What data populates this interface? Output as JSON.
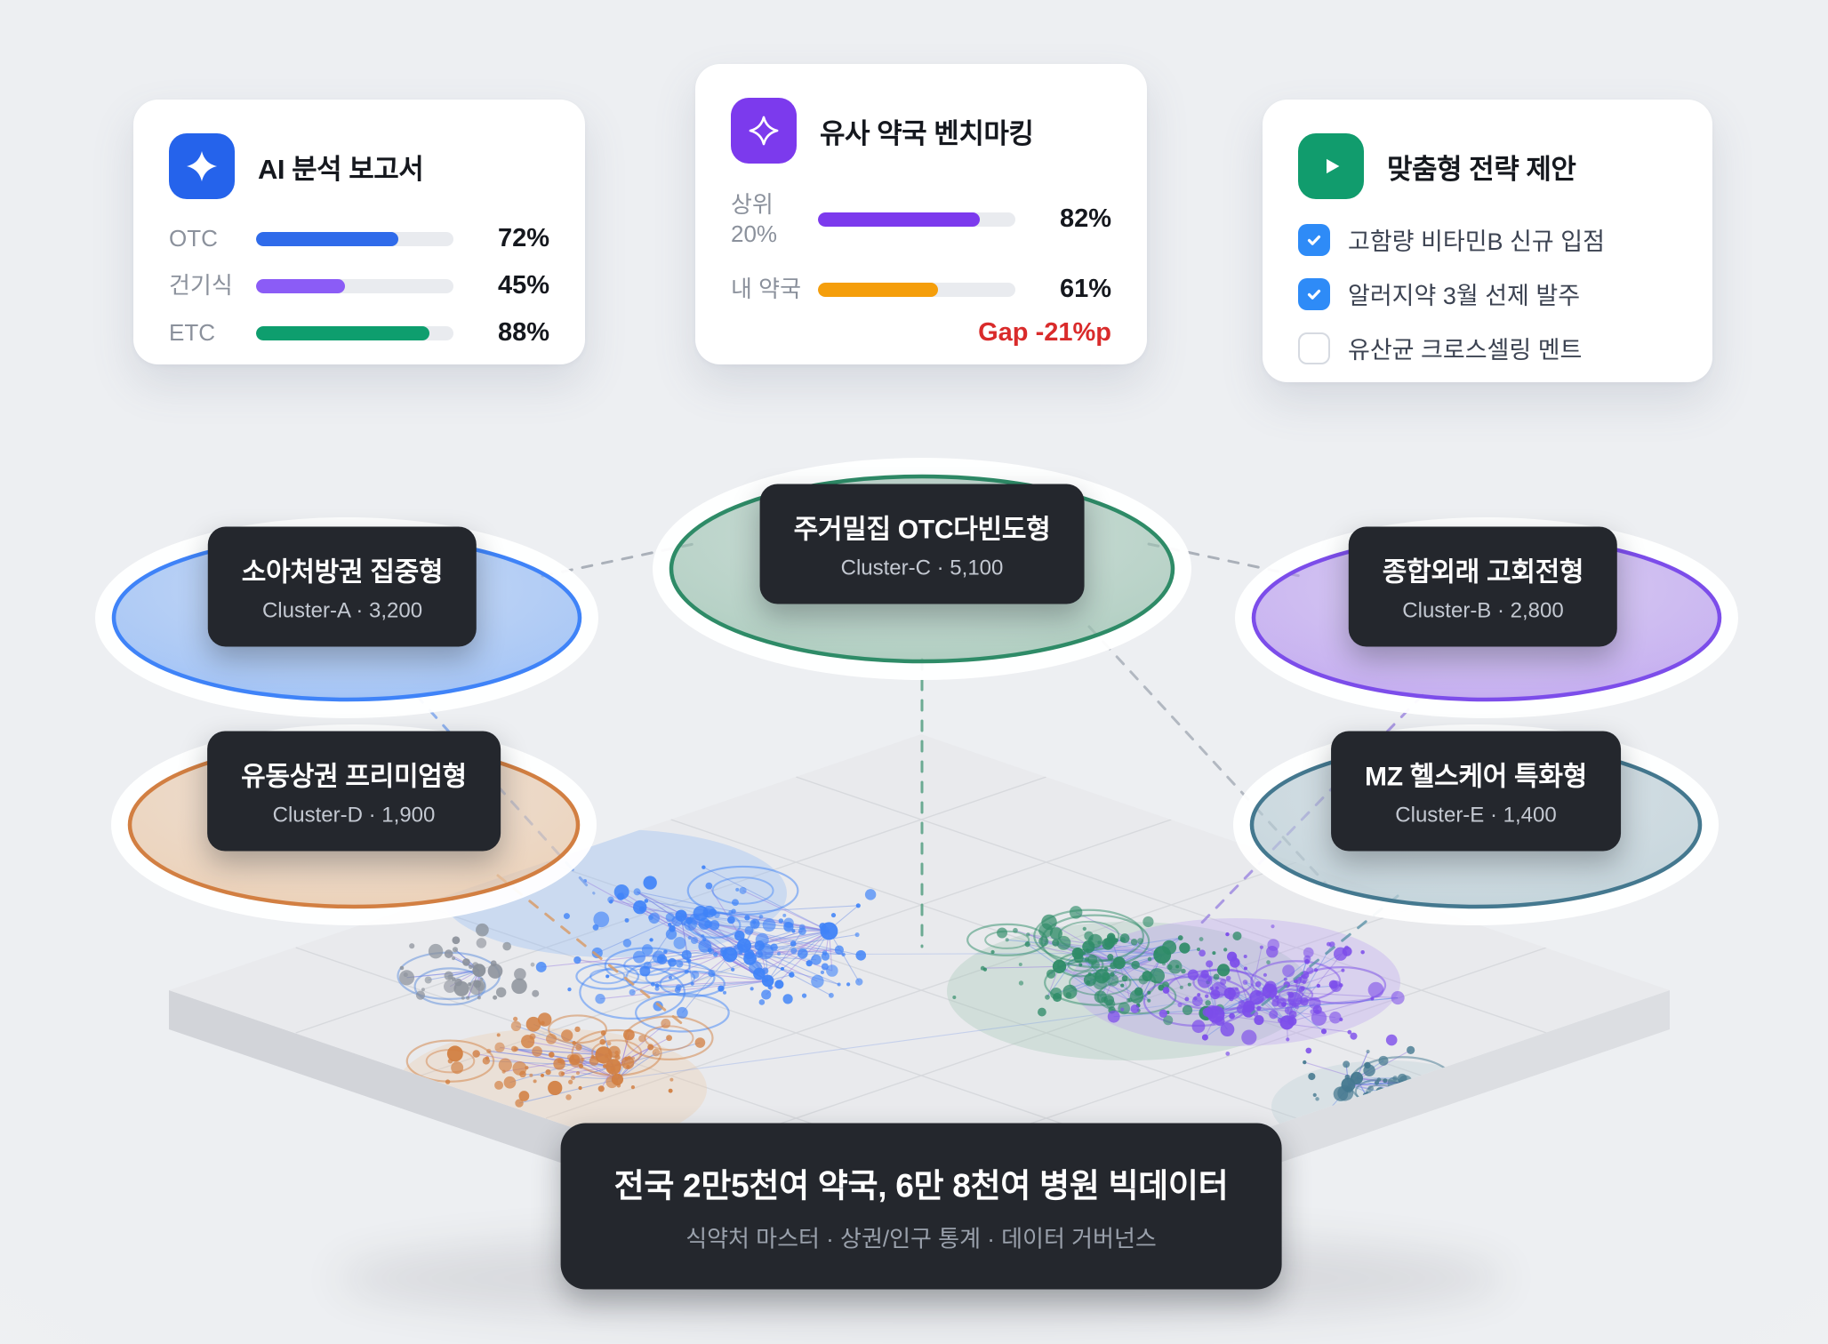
{
  "cards": {
    "ai_report": {
      "icon": "sparkle-icon",
      "icon_bg": "#2563eb",
      "title": "AI 분석 보고서",
      "rows": [
        {
          "label": "OTC",
          "value": 72,
          "display": "72%",
          "color": "#2f6bea"
        },
        {
          "label": "건기식",
          "value": 45,
          "display": "45%",
          "color": "#8b5cf6"
        },
        {
          "label": "ETC",
          "value": 88,
          "display": "88%",
          "color": "#0e9e6e"
        }
      ]
    },
    "benchmark": {
      "icon": "sparkle-outline-icon",
      "icon_bg": "#7c3aed",
      "title": "유사 약국 벤치마킹",
      "rows": [
        {
          "label": "상위 20%",
          "value": 82,
          "display": "82%",
          "color": "#7c3aed"
        },
        {
          "label": "내 약국",
          "value": 61,
          "display": "61%",
          "color": "#f59e0b"
        }
      ],
      "gap_label": "Gap -21%p",
      "gap_color": "#d92b2b"
    },
    "strategy": {
      "icon": "play-icon",
      "icon_bg": "#119c6d",
      "title": "맞춤형 전략 제안",
      "checkbox_color": "#2e8bf7",
      "items": [
        {
          "label": "고함량 비타민B 신규 입점",
          "checked": true
        },
        {
          "label": "알러지약 3월 선제 발주",
          "checked": true
        },
        {
          "label": "유산균 크로스셀링 멘트",
          "checked": false
        }
      ]
    }
  },
  "clusters": [
    {
      "id": "A",
      "name": "소아처방권 집중형",
      "meta": "Cluster-A · 3,200",
      "count": 3200,
      "stroke": "#3f83f8",
      "fill": "#8db7f7"
    },
    {
      "id": "B",
      "name": "종합외래 고회전형",
      "meta": "Cluster-B · 2,800",
      "count": 2800,
      "stroke": "#7c4dea",
      "fill": "#b99af0"
    },
    {
      "id": "C",
      "name": "주거밀집 OTC다빈도형",
      "meta": "Cluster-C · 5,100",
      "count": 5100,
      "stroke": "#2e8b67",
      "fill": "#9ec4b2"
    },
    {
      "id": "D",
      "name": "유동상권 프리미엄형",
      "meta": "Cluster-D · 1,900",
      "count": 1900,
      "stroke": "#d27f42",
      "fill": "#ecc9a8"
    },
    {
      "id": "E",
      "name": "MZ 헬스케어 특화형",
      "meta": "Cluster-E · 1,400",
      "count": 1400,
      "stroke": "#44788f",
      "fill": "#b9cdd5"
    }
  ],
  "footer": {
    "title": "전국 2만5천여 약국, 6만 8천여 병원 빅데이터",
    "subtitle": "식약처 마스터 · 상권/인구 통계 · 데이터 거버넌스"
  },
  "network": {
    "misc_dot_color": "#8a9099",
    "misc_ring_color": "#5b8bdb",
    "edge_colors": [
      "#6c8fe6",
      "#987ce0"
    ]
  },
  "chart_data": [
    {
      "type": "bar",
      "title": "AI 분석 보고서",
      "categories": [
        "OTC",
        "건기식",
        "ETC"
      ],
      "values": [
        72,
        45,
        88
      ],
      "unit": "%",
      "xlim": [
        0,
        100
      ]
    },
    {
      "type": "bar",
      "title": "유사 약국 벤치마킹",
      "categories": [
        "상위 20%",
        "내 약국"
      ],
      "values": [
        82,
        61
      ],
      "unit": "%",
      "xlim": [
        0,
        100
      ],
      "annotation": "Gap -21%p"
    },
    {
      "type": "scatter",
      "title": "전국 약국 클러스터 맵",
      "series": [
        {
          "name": "소아처방권 집중형",
          "cluster": "Cluster-A",
          "value": 3200
        },
        {
          "name": "종합외래 고회전형",
          "cluster": "Cluster-B",
          "value": 2800
        },
        {
          "name": "주거밀집 OTC다빈도형",
          "cluster": "Cluster-C",
          "value": 5100
        },
        {
          "name": "유동상권 프리미엄형",
          "cluster": "Cluster-D",
          "value": 1900
        },
        {
          "name": "MZ 헬스케어 특화형",
          "cluster": "Cluster-E",
          "value": 1400
        }
      ],
      "caption": "전국 2만5천여 약국, 6만 8천여 병원 빅데이터",
      "sub_caption": "식약처 마스터 · 상권/인구 통계 · 데이터 거버넌스"
    }
  ]
}
